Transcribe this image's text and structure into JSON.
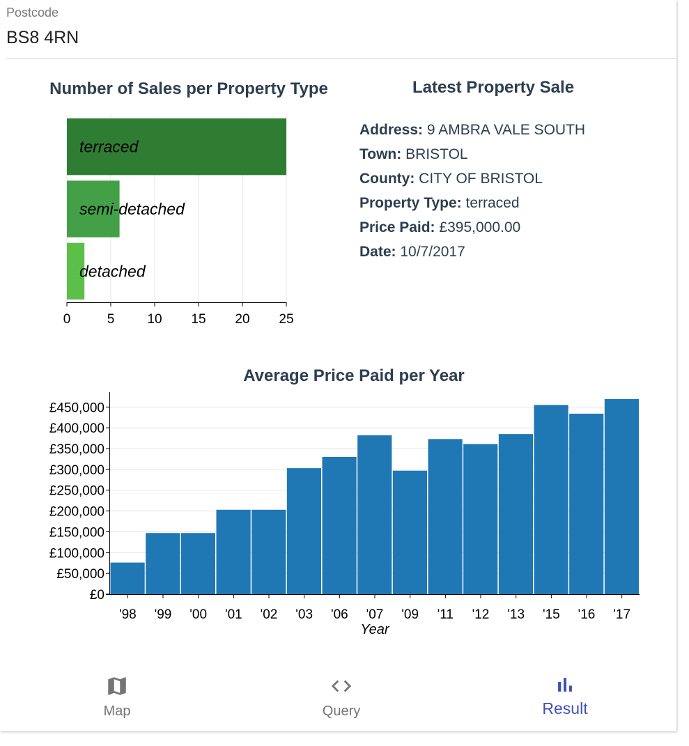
{
  "postcode": {
    "label": "Postcode",
    "value": "BS8 4RN"
  },
  "latest_sale": {
    "title": "Latest Property Sale",
    "rows": [
      {
        "label": "Address:",
        "value": "9 AMBRA VALE SOUTH"
      },
      {
        "label": "Town:",
        "value": "BRISTOL"
      },
      {
        "label": "County:",
        "value": "CITY OF BRISTOL"
      },
      {
        "label": "Property Type:",
        "value": "terraced"
      },
      {
        "label": "Price Paid:",
        "value": "£395,000.00"
      },
      {
        "label": "Date:",
        "value": "10/7/2017"
      }
    ]
  },
  "chart_data": [
    {
      "type": "bar",
      "orientation": "horizontal",
      "title": "Number of Sales per Property Type",
      "categories": [
        "terraced",
        "semi-detached",
        "detached"
      ],
      "values": [
        25,
        6,
        2
      ],
      "colors": [
        "#2e7d32",
        "#43a047",
        "#5cbf4a"
      ],
      "xlim": [
        0,
        25
      ],
      "xticks": [
        0,
        5,
        10,
        15,
        20,
        25
      ],
      "xlabel": "",
      "ylabel": ""
    },
    {
      "type": "bar",
      "title": "Average Price Paid per Year",
      "categories": [
        "'98",
        "'99",
        "'00",
        "'01",
        "'02",
        "'03",
        "'06",
        "'07",
        "'09",
        "'11",
        "'12",
        "'13",
        "'15",
        "'16",
        "'17"
      ],
      "values": [
        76000,
        147000,
        147000,
        203000,
        203000,
        303000,
        330000,
        382000,
        297000,
        373000,
        361000,
        385000,
        455000,
        434000,
        469000
      ],
      "color": "#1f77b4",
      "ylim": [
        0,
        469000
      ],
      "yticks": [
        0,
        50000,
        100000,
        150000,
        200000,
        250000,
        300000,
        350000,
        400000,
        450000
      ],
      "ytick_labels": [
        "£0",
        "£50,000",
        "£100,000",
        "£150,000",
        "£200,000",
        "£250,000",
        "£300,000",
        "£350,000",
        "£400,000",
        "£450,000"
      ],
      "xlabel": "Year",
      "ylabel": ""
    }
  ],
  "nav": {
    "items": [
      {
        "label": "Map",
        "icon": "map-icon",
        "color": "#757575"
      },
      {
        "label": "Query",
        "icon": "code-icon",
        "color": "#757575"
      },
      {
        "label": "Result",
        "icon": "bar-chart-icon",
        "color": "#3f51b5"
      }
    ]
  }
}
